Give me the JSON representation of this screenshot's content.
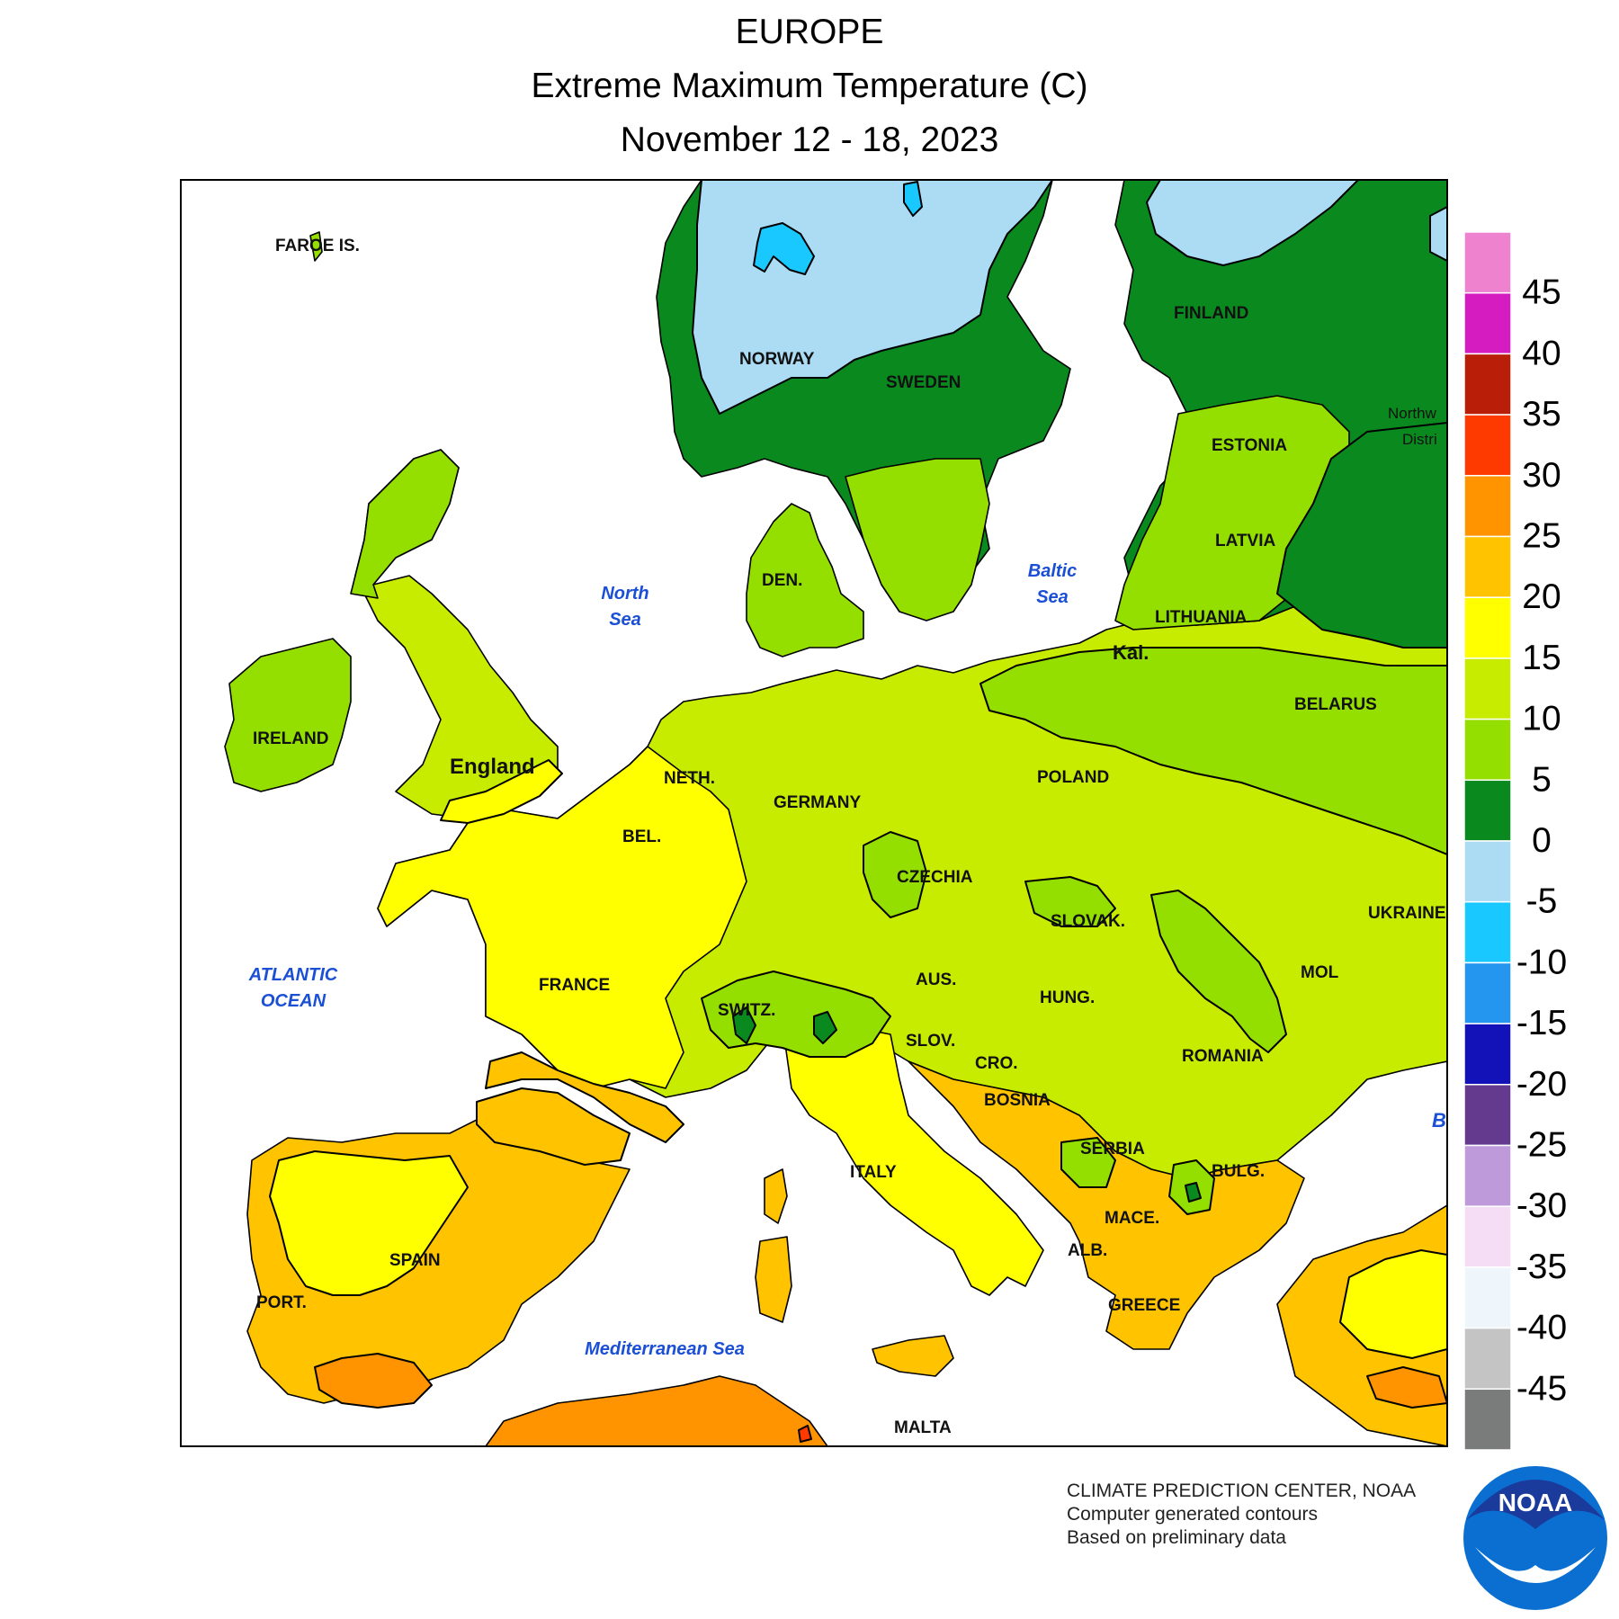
{
  "title": {
    "region": "EUROPE",
    "variable": "Extreme Maximum Temperature (C)",
    "dates": "November 12 - 18, 2023"
  },
  "legend": {
    "labels": [
      "45",
      "40",
      "35",
      "30",
      "25",
      "20",
      "15",
      "10",
      "5",
      "0",
      "-5",
      "-10",
      "-15",
      "-20",
      "-25",
      "-30",
      "-35",
      "-40",
      "-45"
    ],
    "colors": [
      "#ee82ce",
      "#d41cc0",
      "#b91e08",
      "#ff3a00",
      "#ff9400",
      "#ffc300",
      "#ffff00",
      "#c8ec00",
      "#94de00",
      "#0a8a1e",
      "#acdcf4",
      "#19c8ff",
      "#2596ef",
      "#1212b8",
      "#633a8e",
      "#bf9ada",
      "#f4ddf5",
      "#eef6fc",
      "#c4c4c4",
      "#7a7b7b"
    ]
  },
  "labels": {
    "faroe": "FAROE IS.",
    "norway": "NORWAY",
    "sweden": "SWEDEN",
    "finland": "FINLAND",
    "estonia": "ESTONIA",
    "latvia": "LATVIA",
    "lithuania": "LITHUANIA",
    "kal": "Kal.",
    "belarus": "BELARUS",
    "northwest1": "Northw",
    "northwest2": "Distri",
    "ireland": "IRELAND",
    "england": "England",
    "den": "DEN.",
    "neth": "NETH.",
    "bel": "BEL.",
    "germany": "GERMANY",
    "poland": "POLAND",
    "czechia": "CZECHIA",
    "slovak": "SLOVAK.",
    "ukraine": "UKRAINE",
    "france": "FRANCE",
    "switz": "SWITZ.",
    "aus": "AUS.",
    "hung": "HUNG.",
    "mol": "MOL",
    "slov": "SLOV.",
    "cro": "CRO.",
    "bosnia": "BOSNIA",
    "romania": "ROMANIA",
    "serbia": "SERBIA",
    "bulg": "BULG.",
    "italy": "ITALY",
    "mace": "MACE.",
    "alb": "ALB.",
    "greece": "GREECE",
    "spain": "SPAIN",
    "port": "PORT.",
    "malta": "MALTA",
    "b_edge": "B",
    "north_sea_1": "North",
    "north_sea_2": "Sea",
    "baltic_1": "Baltic",
    "baltic_2": "Sea",
    "atlantic_1": "ATLANTIC",
    "atlantic_2": "OCEAN",
    "med": "Mediterranean Sea"
  },
  "credits": {
    "line1": "CLIMATE PREDICTION CENTER, NOAA",
    "line2": "Computer generated contours",
    "line3": "Based on preliminary data"
  },
  "logo": {
    "text": "NOAA"
  }
}
